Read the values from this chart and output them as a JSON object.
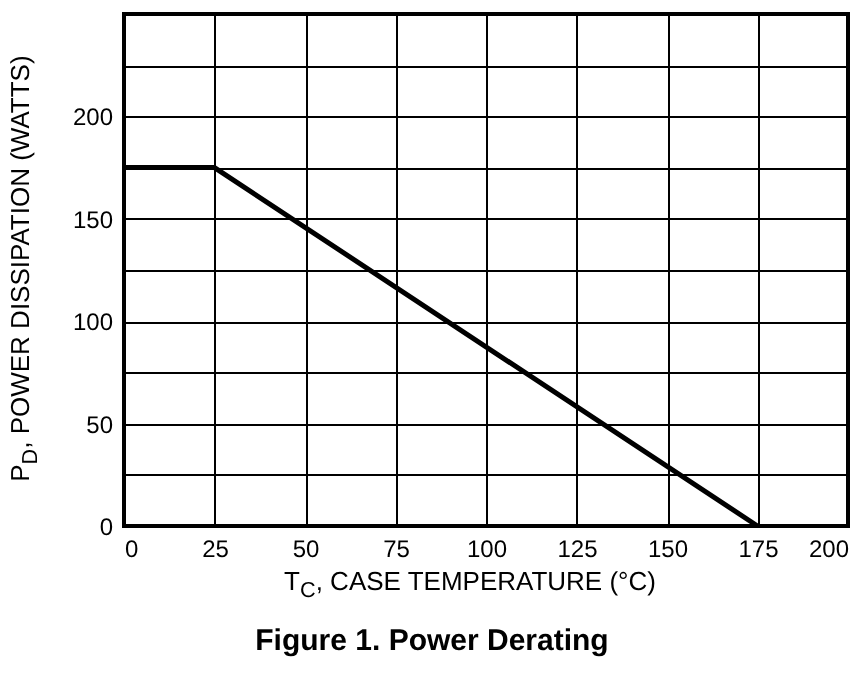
{
  "chart_data": {
    "type": "line",
    "title": "Figure 1. Power Derating",
    "xlabel": "T$_{C}$, CASE TEMPERATURE (°C)",
    "ylabel": "P$_{D}$, POWER DISSIPATION (WATTS)",
    "x": [
      0,
      25,
      175
    ],
    "series": [
      {
        "color": "#000000",
        "values": [
          175,
          175,
          0
        ]
      }
    ],
    "xlim": [
      0,
      200
    ],
    "xticks": [
      0,
      25,
      50,
      75,
      100,
      125,
      150,
      175,
      200
    ],
    "ylim": [
      0,
      250
    ],
    "yticks": [
      0,
      {
        "value": 25,
        "label": null
      },
      50,
      {
        "value": 75,
        "label": null
      },
      100,
      {
        "value": 125,
        "label": null
      },
      150,
      {
        "value": 175,
        "label": null
      },
      200,
      {
        "value": 225,
        "label": null
      },
      {
        "value": 250,
        "label": null
      }
    ],
    "grid": true,
    "marker": "none",
    "line_style": "solid"
  }
}
